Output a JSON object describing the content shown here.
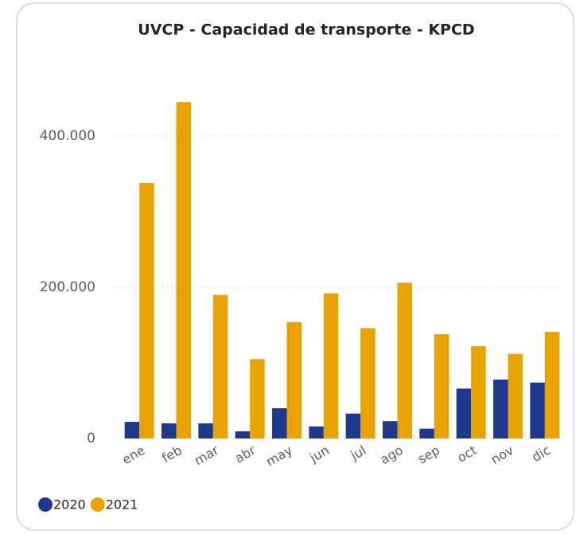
{
  "chart_data": {
    "type": "bar",
    "title": "UVCP - Capacidad de transporte - KPCD",
    "categories": [
      "ene",
      "feb",
      "mar",
      "abr",
      "may",
      "jun",
      "jul",
      "ago",
      "sep",
      "oct",
      "nov",
      "dic"
    ],
    "series": [
      {
        "name": "2020",
        "color": "#1f3a8c",
        "values": [
          22000,
          20000,
          20000,
          9500,
          40000,
          16000,
          33000,
          23000,
          13000,
          66000,
          78000,
          74000
        ]
      },
      {
        "name": "2021",
        "color": "#e8a300",
        "values": [
          338000,
          445000,
          190000,
          105000,
          154000,
          192000,
          146000,
          206000,
          138000,
          122000,
          112000,
          141000
        ]
      }
    ],
    "ylim": [
      0,
      470000
    ],
    "yticks": [
      0,
      {
        "value": 200000,
        "label": "200.000"
      },
      {
        "value": 400000,
        "label": "400.000"
      }
    ],
    "grid": true,
    "legend": "bottom-left"
  }
}
